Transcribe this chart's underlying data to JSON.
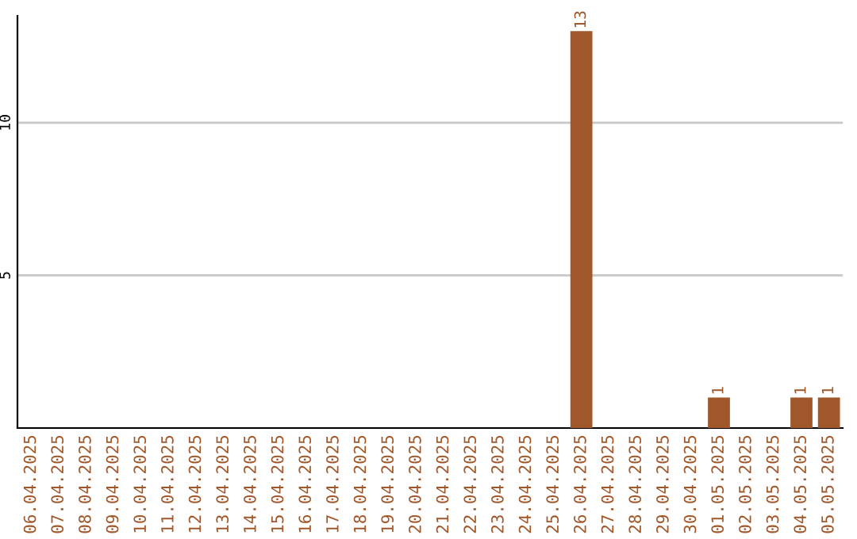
{
  "chart_data": {
    "type": "bar",
    "categories": [
      "06.04.2025",
      "07.04.2025",
      "08.04.2025",
      "09.04.2025",
      "10.04.2025",
      "11.04.2025",
      "12.04.2025",
      "13.04.2025",
      "14.04.2025",
      "15.04.2025",
      "16.04.2025",
      "17.04.2025",
      "18.04.2025",
      "19.04.2025",
      "20.04.2025",
      "21.04.2025",
      "22.04.2025",
      "23.04.2025",
      "24.04.2025",
      "25.04.2025",
      "26.04.2025",
      "27.04.2025",
      "28.04.2025",
      "29.04.2025",
      "30.04.2025",
      "01.05.2025",
      "02.05.2025",
      "03.05.2025",
      "04.05.2025",
      "05.05.2025"
    ],
    "values": [
      0,
      0,
      0,
      0,
      0,
      0,
      0,
      0,
      0,
      0,
      0,
      0,
      0,
      0,
      0,
      0,
      0,
      0,
      0,
      0,
      13,
      0,
      0,
      0,
      0,
      1,
      0,
      0,
      1,
      1
    ],
    "value_labels": [
      null,
      null,
      null,
      null,
      null,
      null,
      null,
      null,
      null,
      null,
      null,
      null,
      null,
      null,
      null,
      null,
      null,
      null,
      null,
      null,
      "13",
      null,
      null,
      null,
      null,
      "1",
      null,
      null,
      "1",
      "1"
    ],
    "color": "#a0582a",
    "ylim": [
      0,
      13.5
    ],
    "yticks": [
      5,
      10
    ],
    "grid": "y"
  }
}
